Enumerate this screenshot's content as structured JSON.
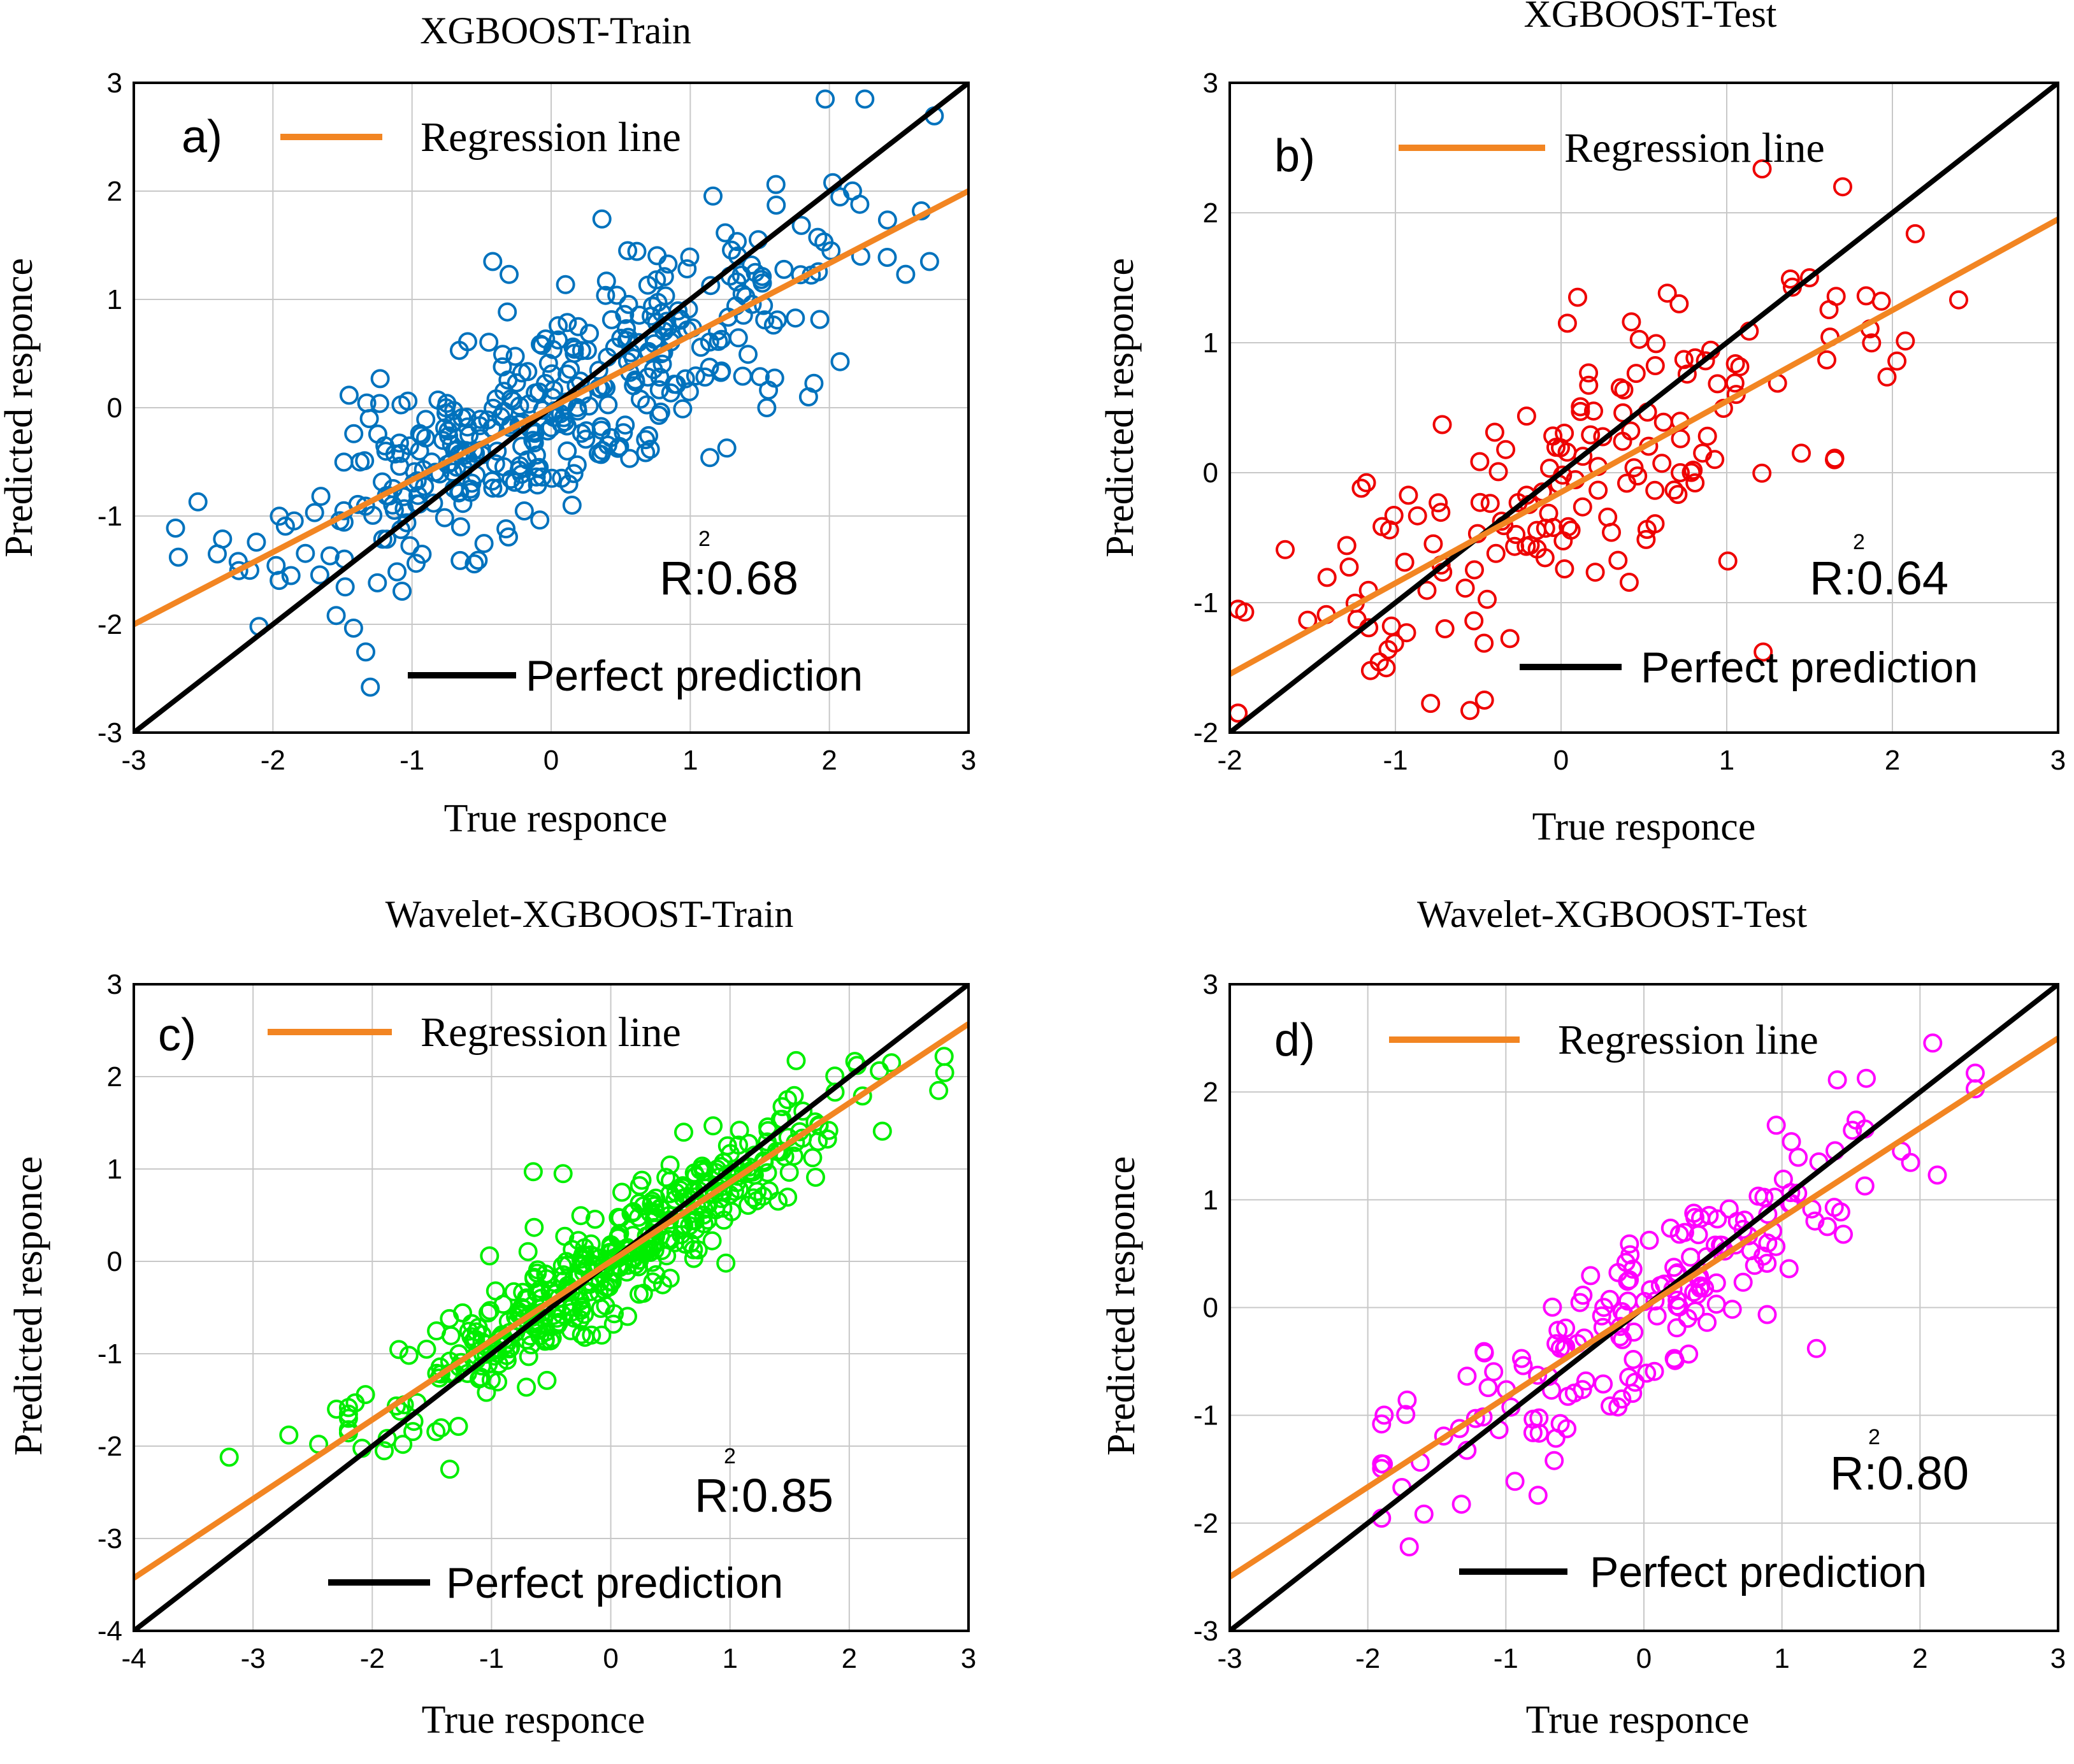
{
  "colors": {
    "regression": "#f28522",
    "perfect": "#000000",
    "grid": "#c8c8c8",
    "frame": "#000000",
    "panel_a": "#0072bd",
    "panel_b": "#ee0000",
    "panel_c": "#00ee00",
    "panel_d": "#ff00ff"
  },
  "chart_data": [
    {
      "type": "scatter",
      "id": "a",
      "title": "XGBOOST-Train",
      "panel_label": "a)",
      "xlabel": "True responce",
      "ylabel": "Predicted responce",
      "xlim": [
        -3,
        3
      ],
      "ylim": [
        -3,
        3
      ],
      "xticks": [
        "-3",
        "-2",
        "-1",
        "0",
        "1",
        "2",
        "3"
      ],
      "yticks": [
        "-3",
        "-2",
        "-1",
        "0",
        "1",
        "2",
        "3"
      ],
      "r2_label": "R:0.68",
      "r2_sup": "2",
      "legend": {
        "regression": "Regression line",
        "perfect": "Perfect prediction"
      },
      "regression_line": {
        "slope": 0.667,
        "intercept": 0.0
      },
      "perfect_line": {
        "slope": 1,
        "intercept": 0
      },
      "series": [
        {
          "name": "XGBOOST-Train",
          "color_key": "panel_a",
          "n_points": 400,
          "slope": 0.667,
          "intercept": 0.0,
          "x_mean": 0.0,
          "x_sd": 0.95,
          "noise_sd": 0.48,
          "x_range": [
            -2.7,
            2.8
          ],
          "seed": 11
        }
      ],
      "points": [
        [
          -2.68,
          -1.38
        ],
        [
          -2.4,
          -1.35
        ],
        [
          -2.25,
          -1.42
        ],
        [
          -2.1,
          -2.02
        ],
        [
          -1.3,
          -2.58
        ],
        [
          -1.87,
          -1.55
        ],
        [
          2.72,
          1.35
        ],
        [
          0.55,
          1.45
        ],
        [
          -0.42,
          1.35
        ],
        [
          1.85,
          0.1
        ],
        [
          1.55,
          0.0
        ],
        [
          0.15,
          -0.9
        ]
      ]
    },
    {
      "type": "scatter",
      "id": "b",
      "title": "XGBOOST-Test",
      "panel_label": "b)",
      "xlabel": "True responce",
      "ylabel": "Predicted responce",
      "xlim": [
        -2,
        3
      ],
      "ylim": [
        -2,
        3
      ],
      "xticks": [
        "-2",
        "-1",
        "0",
        "1",
        "2",
        "3"
      ],
      "yticks": [
        "-2",
        "-1",
        "0",
        "1",
        "2",
        "3"
      ],
      "r2_label": "R:0.64",
      "r2_sup": "2",
      "legend": {
        "regression": "Regression line",
        "perfect": "Perfect prediction"
      },
      "regression_line": {
        "slope": 0.7,
        "intercept": -0.15
      },
      "perfect_line": {
        "slope": 1,
        "intercept": 0
      },
      "series": [
        {
          "name": "XGBOOST-Test",
          "color_key": "panel_b",
          "n_points": 165,
          "slope": 0.7,
          "intercept": -0.15,
          "x_mean": 0.05,
          "x_sd": 0.92,
          "noise_sd": 0.5,
          "x_range": [
            -1.95,
            2.45
          ],
          "seed": 23
        }
      ],
      "points": [
        [
          -1.95,
          -1.05
        ],
        [
          1.7,
          2.2
        ],
        [
          2.4,
          1.33
        ],
        [
          -0.55,
          -1.83
        ],
        [
          1.22,
          -1.38
        ],
        [
          0.1,
          1.35
        ],
        [
          1.65,
          0.1
        ],
        [
          1.45,
          0.15
        ]
      ]
    },
    {
      "type": "scatter",
      "id": "c",
      "title": "Wavelet-XGBOOST-Train",
      "panel_label": "c)",
      "xlabel": "True responce",
      "ylabel": "Predicted responce",
      "xlim": [
        -4,
        3
      ],
      "ylim": [
        -4,
        3
      ],
      "xticks": [
        "-4",
        "-3",
        "-2",
        "-1",
        "0",
        "1",
        "2",
        "3"
      ],
      "yticks": [
        "-4",
        "-3",
        "-2",
        "-1",
        "0",
        "1",
        "2",
        "3"
      ],
      "r2_label": "R:0.85",
      "r2_sup": "2",
      "legend": {
        "regression": "Regression line",
        "perfect": "Perfect prediction"
      },
      "regression_line": {
        "slope": 0.857,
        "intercept": -0.0
      },
      "perfect_line": {
        "slope": 1,
        "intercept": 0
      },
      "series": [
        {
          "name": "Wavelet-XGBOOST-Train",
          "color_key": "panel_c",
          "n_points": 420,
          "slope": 0.857,
          "intercept": 0.0,
          "x_mean": 0.1,
          "x_sd": 0.95,
          "noise_sd": 0.3,
          "x_range": [
            -2.2,
            2.8
          ],
          "seed": 37
        }
      ],
      "points": [
        [
          -3.2,
          -2.12
        ],
        [
          -2.7,
          -1.88
        ],
        [
          -2.45,
          -1.98
        ],
        [
          -2.3,
          -1.6
        ],
        [
          -1.9,
          -2.05
        ],
        [
          -1.35,
          -2.25
        ],
        [
          2.75,
          1.85
        ],
        [
          -0.65,
          0.97
        ],
        [
          -0.4,
          0.95
        ]
      ]
    },
    {
      "type": "scatter",
      "id": "d",
      "title": "Wavelet-XGBOOST-Test",
      "panel_label": "d)",
      "xlabel": "True responce",
      "ylabel": "Predicted responce",
      "xlim": [
        -3,
        3
      ],
      "ylim": [
        -3,
        3
      ],
      "xticks": [
        "-3",
        "-2",
        "-1",
        "0",
        "1",
        "2",
        "3"
      ],
      "yticks": [
        "-3",
        "-2",
        "-1",
        "0",
        "1",
        "2",
        "3"
      ],
      "r2_label": "R:0.80",
      "r2_sup": "2",
      "legend": {
        "regression": "Regression line",
        "perfect": "Perfect prediction"
      },
      "regression_line": {
        "slope": 0.833,
        "intercept": 0.0
      },
      "perfect_line": {
        "slope": 1,
        "intercept": 0
      },
      "series": [
        {
          "name": "Wavelet-XGBOOST-Test",
          "color_key": "panel_d",
          "n_points": 175,
          "slope": 0.85,
          "intercept": 0.0,
          "x_mean": 0.05,
          "x_sd": 0.9,
          "noise_sd": 0.38,
          "x_range": [
            -1.9,
            2.4
          ],
          "seed": 53
        }
      ],
      "points": [
        [
          -1.9,
          -1.08
        ],
        [
          -1.7,
          -2.22
        ],
        [
          2.4,
          2.03
        ],
        [
          1.25,
          -0.38
        ],
        [
          -0.65,
          -1.42
        ]
      ]
    }
  ]
}
